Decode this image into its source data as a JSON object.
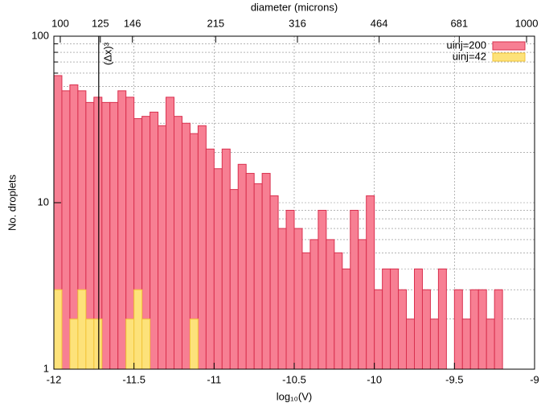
{
  "chart_data": {
    "type": "histogram",
    "title": "diameter  (microns)",
    "xlabel": "log₁₀(V)",
    "ylabel": "No. droplets",
    "bins": [
      -12,
      -11.95,
      -11.9,
      -11.85,
      -11.8,
      -11.75,
      -11.7,
      -11.65,
      -11.6,
      -11.55,
      -11.5,
      -11.45,
      -11.4,
      -11.35,
      -11.3,
      -11.25,
      -11.2,
      -11.15,
      -11.1,
      -11.05,
      -11,
      -10.95,
      -10.9,
      -10.85,
      -10.8,
      -10.75,
      -10.7,
      -10.65,
      -10.6,
      -10.55,
      -10.5,
      -10.45,
      -10.4,
      -10.35,
      -10.3,
      -10.25,
      -10.2,
      -10.15,
      -10.1,
      -10.05,
      -10,
      -9.95,
      -9.9,
      -9.85,
      -9.8,
      -9.75,
      -9.7,
      -9.65,
      -9.6,
      -9.55,
      -9.5,
      -9.45,
      -9.4,
      -9.35,
      -9.3,
      -9.25,
      -9.2
    ],
    "series": [
      {
        "name": "uinj=200",
        "color": "#f77f93",
        "edge": "#d9304e",
        "values": [
          58,
          47,
          51,
          47,
          40,
          43,
          40,
          40,
          47,
          43,
          32,
          33,
          35,
          29,
          43,
          33,
          30,
          26,
          29,
          21,
          16,
          21,
          12,
          17,
          15,
          13,
          15,
          11,
          7,
          9,
          7,
          5,
          6,
          9,
          6,
          5,
          4,
          9,
          6,
          11,
          3,
          4,
          4,
          3,
          2,
          4,
          3,
          2,
          4,
          0,
          3,
          2,
          3,
          3,
          2,
          3
        ]
      },
      {
        "name": "uinj=42",
        "color": "#fde27a",
        "edge": "#f2c53a",
        "values": [
          3,
          0,
          2,
          3,
          2,
          2,
          0,
          0,
          0,
          2,
          3,
          2,
          0,
          0,
          0,
          0,
          0,
          2,
          0,
          0,
          0,
          0,
          0,
          0,
          0,
          0,
          0,
          0,
          0,
          0,
          0,
          0,
          0,
          0,
          0,
          0,
          0,
          0,
          0,
          0,
          0,
          0,
          0,
          0,
          0,
          0,
          0,
          0,
          0,
          0,
          0,
          0,
          0,
          0,
          0,
          0
        ]
      }
    ],
    "xlim": [
      -12,
      -9
    ],
    "xticks": [
      -12,
      -11.5,
      -11,
      -10.5,
      -10,
      -9.5,
      -9
    ],
    "x2ticks": [
      {
        "value": -11.96,
        "label": "100"
      },
      {
        "value": -11.71,
        "label": "125"
      },
      {
        "value": -11.51,
        "label": "146"
      },
      {
        "value": -10.99,
        "label": "215"
      },
      {
        "value": -10.48,
        "label": "316"
      },
      {
        "value": -9.97,
        "label": "464"
      },
      {
        "value": -9.47,
        "label": "681"
      },
      {
        "value": -9.05,
        "label": "1000"
      }
    ],
    "ylim": [
      1,
      100
    ],
    "ylog": true,
    "yticks": [
      1,
      10,
      100
    ],
    "yminorticks": [
      2,
      3,
      4,
      5,
      6,
      7,
      8,
      9,
      20,
      30,
      40,
      50,
      60,
      70,
      80,
      90
    ],
    "grid": true,
    "legend": "upper right",
    "annotation": {
      "x": -11.72,
      "label": "(Δx)³"
    }
  }
}
